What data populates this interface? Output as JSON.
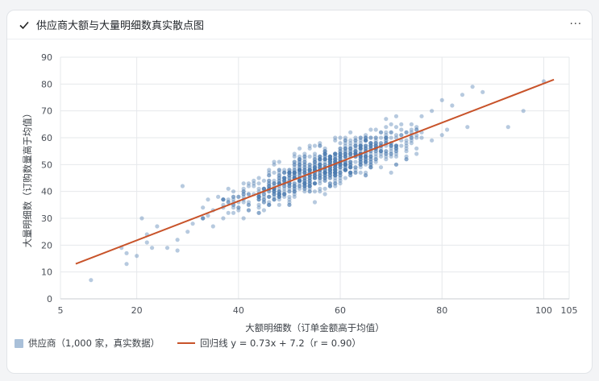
{
  "card": {
    "title": "供应商大额与大量明细数真实散点图",
    "more_label": "···"
  },
  "colors": {
    "point": "#4a7bb0",
    "regression": "#c8532a",
    "grid": "#e6e8eb"
  },
  "chart_data": {
    "type": "scatter",
    "xlabel": "大额明细数（订单金额高于均值）",
    "ylabel": "大量明细数（订购数量高于均值）",
    "xlim": [
      5,
      105
    ],
    "ylim": [
      0,
      90
    ],
    "x_ticks": [
      5,
      20,
      40,
      60,
      80,
      100,
      105
    ],
    "y_ticks": [
      0,
      10,
      20,
      30,
      40,
      50,
      60,
      70,
      80,
      90
    ],
    "series": [
      {
        "name": "供应商（1,000 家，真实数据）",
        "n": 1000,
        "sample_points": [
          [
            11,
            7
          ],
          [
            17,
            19
          ],
          [
            18,
            13
          ],
          [
            18,
            17
          ],
          [
            20,
            16
          ],
          [
            21,
            30
          ],
          [
            22,
            21
          ],
          [
            22,
            24
          ],
          [
            23,
            19
          ],
          [
            24,
            27
          ],
          [
            26,
            19
          ],
          [
            28,
            22
          ],
          [
            28,
            18
          ],
          [
            29,
            42
          ],
          [
            30,
            25
          ],
          [
            31,
            28
          ],
          [
            33,
            30
          ],
          [
            35,
            33
          ],
          [
            36,
            38
          ],
          [
            38,
            41
          ],
          [
            40,
            36
          ],
          [
            42,
            33
          ],
          [
            44,
            45
          ],
          [
            46,
            47
          ],
          [
            48,
            43
          ],
          [
            50,
            46
          ],
          [
            52,
            48
          ],
          [
            54,
            50
          ],
          [
            56,
            52
          ],
          [
            58,
            49
          ],
          [
            60,
            55
          ],
          [
            62,
            53
          ],
          [
            64,
            56
          ],
          [
            66,
            60
          ],
          [
            68,
            62
          ],
          [
            70,
            58
          ],
          [
            72,
            65
          ],
          [
            74,
            63
          ],
          [
            76,
            68
          ],
          [
            78,
            70
          ],
          [
            80,
            74
          ],
          [
            82,
            72
          ],
          [
            84,
            76
          ],
          [
            86,
            79
          ],
          [
            88,
            77
          ],
          [
            93,
            64
          ],
          [
            96,
            70
          ],
          [
            100,
            81
          ]
        ]
      }
    ],
    "regression": {
      "label": "回归线 y = 0.73x + 7.2（r = 0.90）",
      "slope": 0.73,
      "intercept": 7.2,
      "r": 0.9,
      "x_range": [
        8,
        102
      ]
    }
  }
}
